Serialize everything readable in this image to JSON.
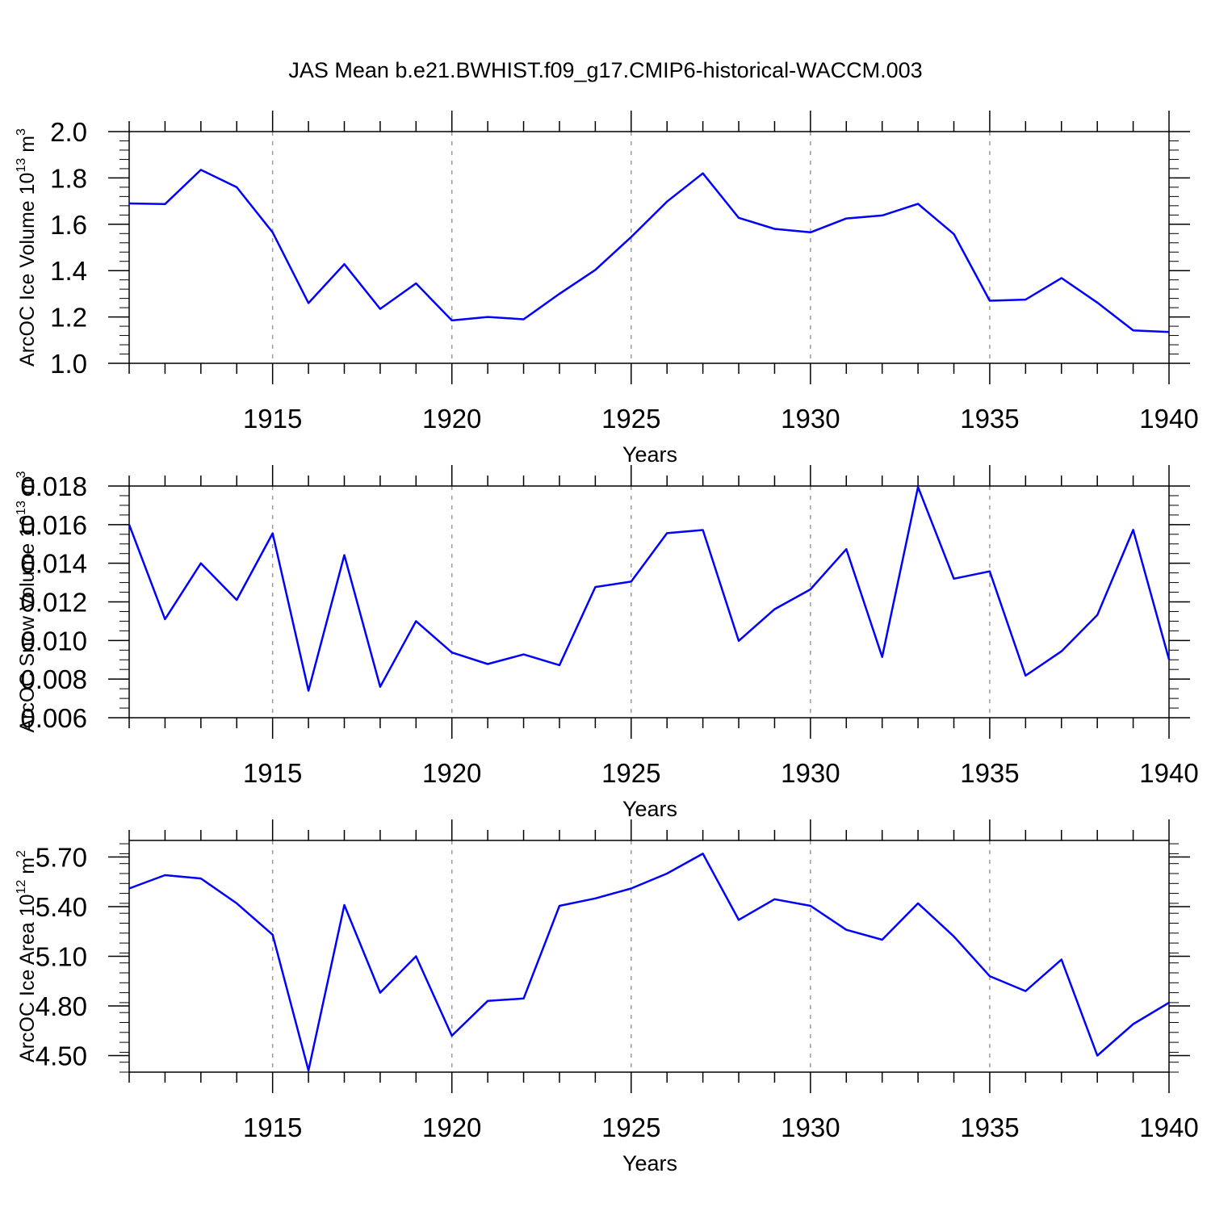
{
  "title": "JAS Mean b.e21.BWHIST.f09_g17.CMIP6-historical-WACCM.003",
  "colors": {
    "line": "#0000ff",
    "axis": "#000000",
    "grid": "#9a9a9a"
  },
  "chart_data": [
    {
      "type": "line",
      "ylabel": {
        "main": "ArcOC Ice Volume 10",
        "exponent": "13",
        "unit": " m",
        "unit_exponent": "3"
      },
      "xlabel": "Years",
      "xlim": [
        1911,
        1940
      ],
      "ylim": [
        1.0,
        2.0
      ],
      "x_major_ticks": [
        1915,
        1920,
        1925,
        1930,
        1935,
        1940
      ],
      "x_tick_labels": [
        "1915",
        "1920",
        "1925",
        "1930",
        "1935",
        "1940"
      ],
      "y_major_ticks": [
        1.0,
        1.2,
        1.4,
        1.6,
        1.8,
        2.0
      ],
      "y_tick_labels": [
        "1.0",
        "1.2",
        "1.4",
        "1.6",
        "1.8",
        "2.0"
      ],
      "y_minor_step": 0.04,
      "x": [
        1911,
        1912,
        1913,
        1914,
        1915,
        1916,
        1917,
        1918,
        1919,
        1920,
        1921,
        1922,
        1923,
        1924,
        1925,
        1926,
        1927,
        1928,
        1929,
        1930,
        1931,
        1932,
        1933,
        1934,
        1935,
        1936,
        1937,
        1938,
        1939,
        1940
      ],
      "values": [
        1.69,
        1.687,
        1.835,
        1.76,
        1.565,
        1.26,
        1.428,
        1.235,
        1.345,
        1.185,
        1.2,
        1.19,
        1.3,
        1.403,
        1.545,
        1.698,
        1.82,
        1.628,
        1.58,
        1.565,
        1.625,
        1.638,
        1.688,
        1.558,
        1.27,
        1.275,
        1.368,
        1.262,
        1.142,
        1.135
      ]
    },
    {
      "type": "line",
      "ylabel": {
        "main": "ArcOC Snow Volume 10",
        "exponent": "13",
        "unit": " m",
        "unit_exponent": "3"
      },
      "xlabel": "Years",
      "xlim": [
        1911,
        1940
      ],
      "ylim": [
        0.006,
        0.018
      ],
      "x_major_ticks": [
        1915,
        1920,
        1925,
        1930,
        1935,
        1940
      ],
      "x_tick_labels": [
        "1915",
        "1920",
        "1925",
        "1930",
        "1935",
        "1940"
      ],
      "y_major_ticks": [
        0.006,
        0.008,
        0.01,
        0.012,
        0.014,
        0.016,
        0.018
      ],
      "y_tick_labels": [
        "0.006",
        "0.008",
        "0.010",
        "0.012",
        "0.014",
        "0.016",
        "0.018"
      ],
      "y_minor_step": 0.0005,
      "x": [
        1911,
        1912,
        1913,
        1914,
        1915,
        1916,
        1917,
        1918,
        1919,
        1920,
        1921,
        1922,
        1923,
        1924,
        1925,
        1926,
        1927,
        1928,
        1929,
        1930,
        1931,
        1932,
        1933,
        1934,
        1935,
        1936,
        1937,
        1938,
        1939,
        1940
      ],
      "values": [
        0.016,
        0.0111,
        0.014,
        0.0121,
        0.01555,
        0.0074,
        0.01442,
        0.0076,
        0.011,
        0.00938,
        0.00878,
        0.00928,
        0.00872,
        0.01277,
        0.01305,
        0.01556,
        0.01572,
        0.00998,
        0.01162,
        0.01265,
        0.01473,
        0.00915,
        0.01795,
        0.0132,
        0.01358,
        0.00818,
        0.00944,
        0.01132,
        0.01573,
        0.00902
      ]
    },
    {
      "type": "line",
      "ylabel": {
        "main": "ArcOC Ice Area 10",
        "exponent": "12",
        "unit": " m",
        "unit_exponent": "2"
      },
      "xlabel": "Years",
      "xlim": [
        1911,
        1940
      ],
      "ylim": [
        4.4,
        5.8
      ],
      "x_major_ticks": [
        1915,
        1920,
        1925,
        1930,
        1935,
        1940
      ],
      "x_tick_labels": [
        "1915",
        "1920",
        "1925",
        "1930",
        "1935",
        "1940"
      ],
      "y_major_ticks": [
        4.5,
        4.8,
        5.1,
        5.4,
        5.7
      ],
      "y_tick_labels": [
        "4.50",
        "4.80",
        "5.10",
        "5.40",
        "5.70"
      ],
      "y_minor_step": 0.06,
      "x": [
        1911,
        1912,
        1913,
        1914,
        1915,
        1916,
        1917,
        1918,
        1919,
        1920,
        1921,
        1922,
        1923,
        1924,
        1925,
        1926,
        1927,
        1928,
        1929,
        1930,
        1931,
        1932,
        1933,
        1934,
        1935,
        1936,
        1937,
        1938,
        1939,
        1940
      ],
      "values": [
        5.51,
        5.59,
        5.57,
        5.42,
        5.23,
        4.41,
        5.41,
        4.88,
        5.1,
        4.62,
        4.83,
        4.845,
        5.405,
        5.45,
        5.51,
        5.6,
        5.72,
        5.32,
        5.445,
        5.405,
        5.26,
        5.2,
        5.42,
        5.22,
        4.98,
        4.89,
        5.08,
        4.5,
        4.69,
        4.82
      ]
    }
  ]
}
